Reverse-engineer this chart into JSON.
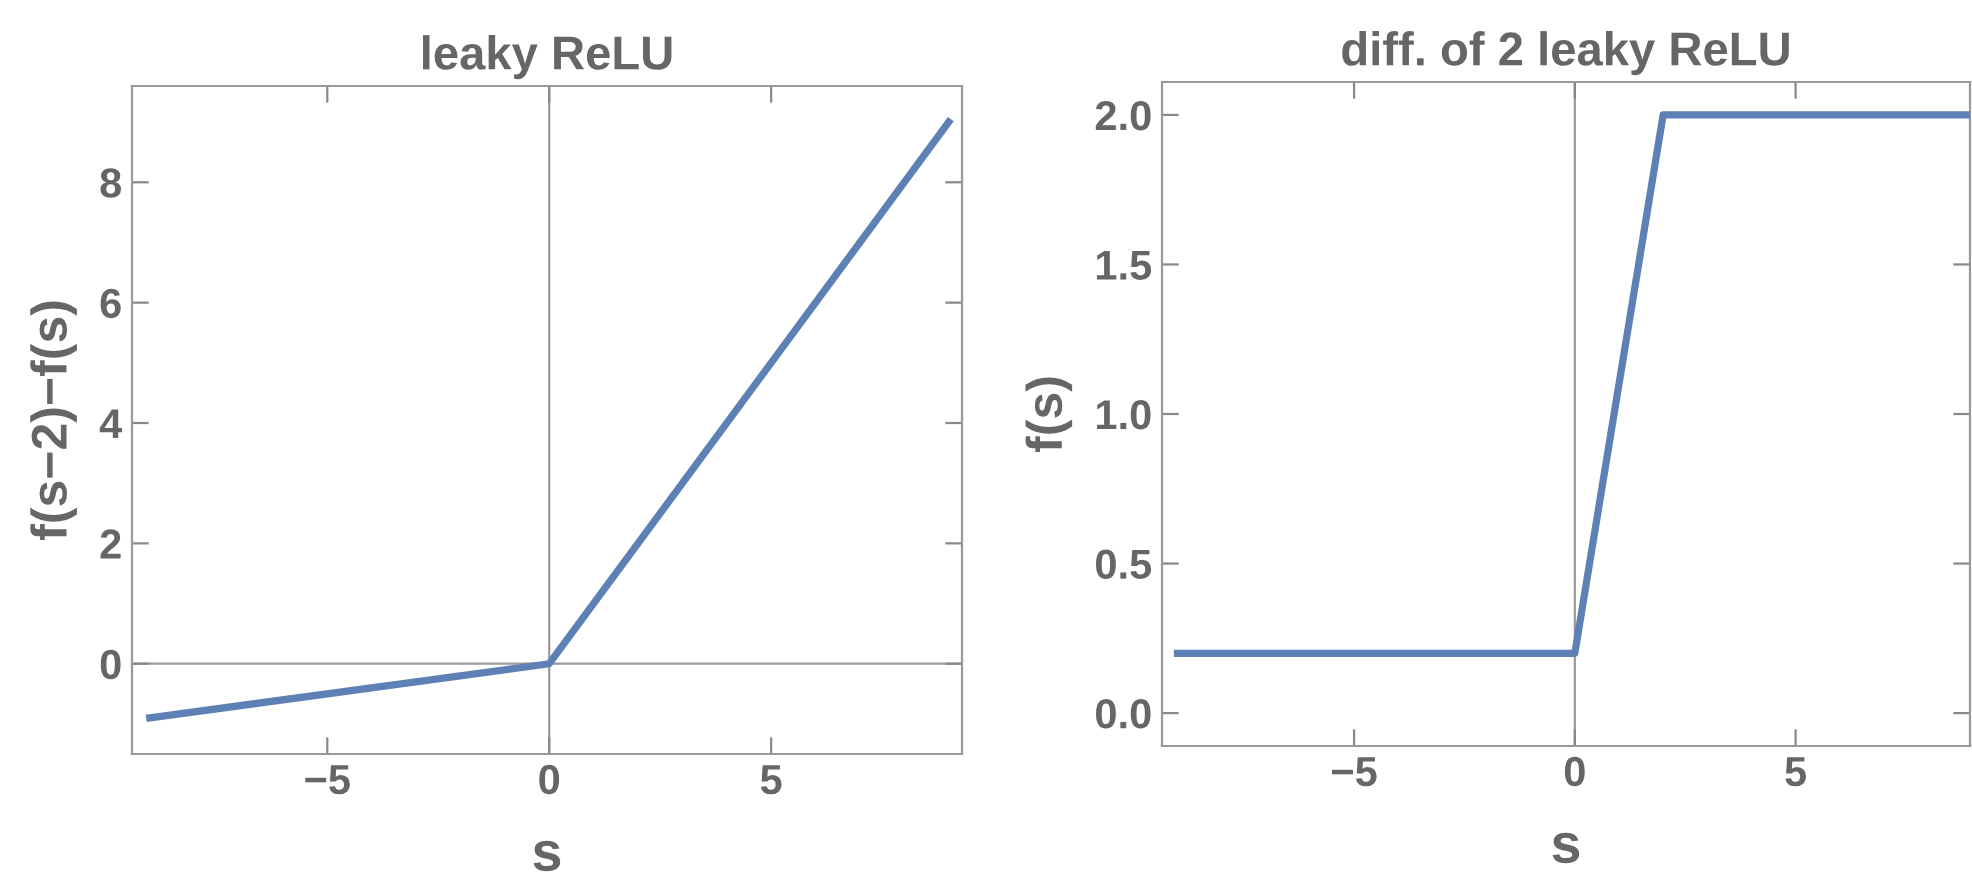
{
  "chart_data": [
    {
      "type": "line",
      "title": "leaky ReLU",
      "xlabel": "s",
      "ylabel": "f(s−2)−f(s)",
      "x": [
        -9,
        0,
        9
      ],
      "series": [
        {
          "color": "#5e81b5",
          "values": [
            -0.9,
            0,
            9
          ]
        }
      ],
      "xlim": [
        -9.4,
        9.3
      ],
      "ylim": [
        -1.5,
        9.6
      ],
      "xticks": [
        {
          "value": -5,
          "label": "−5"
        },
        0,
        5
      ],
      "yticks": [
        0,
        2,
        4,
        6,
        8
      ],
      "ref_lines": [
        {
          "axis": "x",
          "value": 0,
          "color": "#999999"
        },
        {
          "axis": "y",
          "value": 0,
          "color": "#999999"
        }
      ],
      "grid": false,
      "legend": false
    },
    {
      "type": "line",
      "title": "diff. of 2 leaky ReLU",
      "xlabel": "s",
      "ylabel": "f(s)",
      "x": [
        -9,
        0,
        2,
        8.9
      ],
      "series": [
        {
          "color": "#5e81b5",
          "values": [
            0.2,
            0.2,
            2,
            2
          ]
        }
      ],
      "xlim": [
        -9.35,
        8.95
      ],
      "ylim": [
        -0.11,
        2.11
      ],
      "xticks": [
        {
          "value": -5,
          "label": "−5"
        },
        0,
        5
      ],
      "yticks": [
        {
          "value": 0,
          "label": "0.0"
        },
        {
          "value": 0.5,
          "label": "0.5"
        },
        {
          "value": 1,
          "label": "1.0"
        },
        {
          "value": 1.5,
          "label": "1.5"
        },
        {
          "value": 2,
          "label": "2.0"
        }
      ],
      "ref_lines": [
        {
          "axis": "x",
          "value": 0,
          "color": "#999999"
        }
      ],
      "grid": false,
      "legend": false
    }
  ]
}
